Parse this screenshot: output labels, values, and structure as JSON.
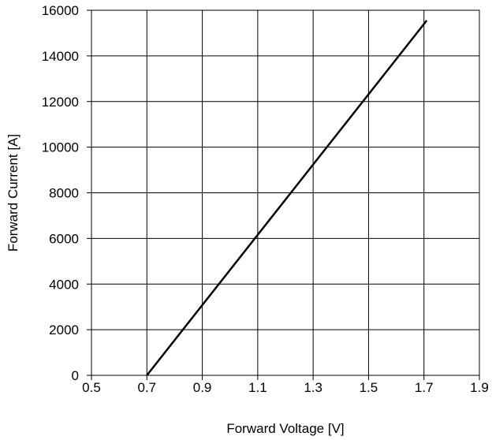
{
  "chart_data": {
    "type": "line",
    "xlabel": "Forward Voltage [V]",
    "ylabel": "Forward Current [A]",
    "xlim": [
      0.5,
      1.9
    ],
    "ylim": [
      0,
      16000
    ],
    "x_ticks": [
      "0.5",
      "0.7",
      "0.9",
      "1.1",
      "1.3",
      "1.5",
      "1.7",
      "1.9"
    ],
    "y_ticks": [
      "0",
      "2000",
      "4000",
      "6000",
      "8000",
      "10000",
      "12000",
      "14000",
      "16000"
    ],
    "grid": true,
    "series": [
      {
        "x": [
          0.7,
          1.71
        ],
        "y": [
          0,
          15550
        ]
      }
    ]
  }
}
